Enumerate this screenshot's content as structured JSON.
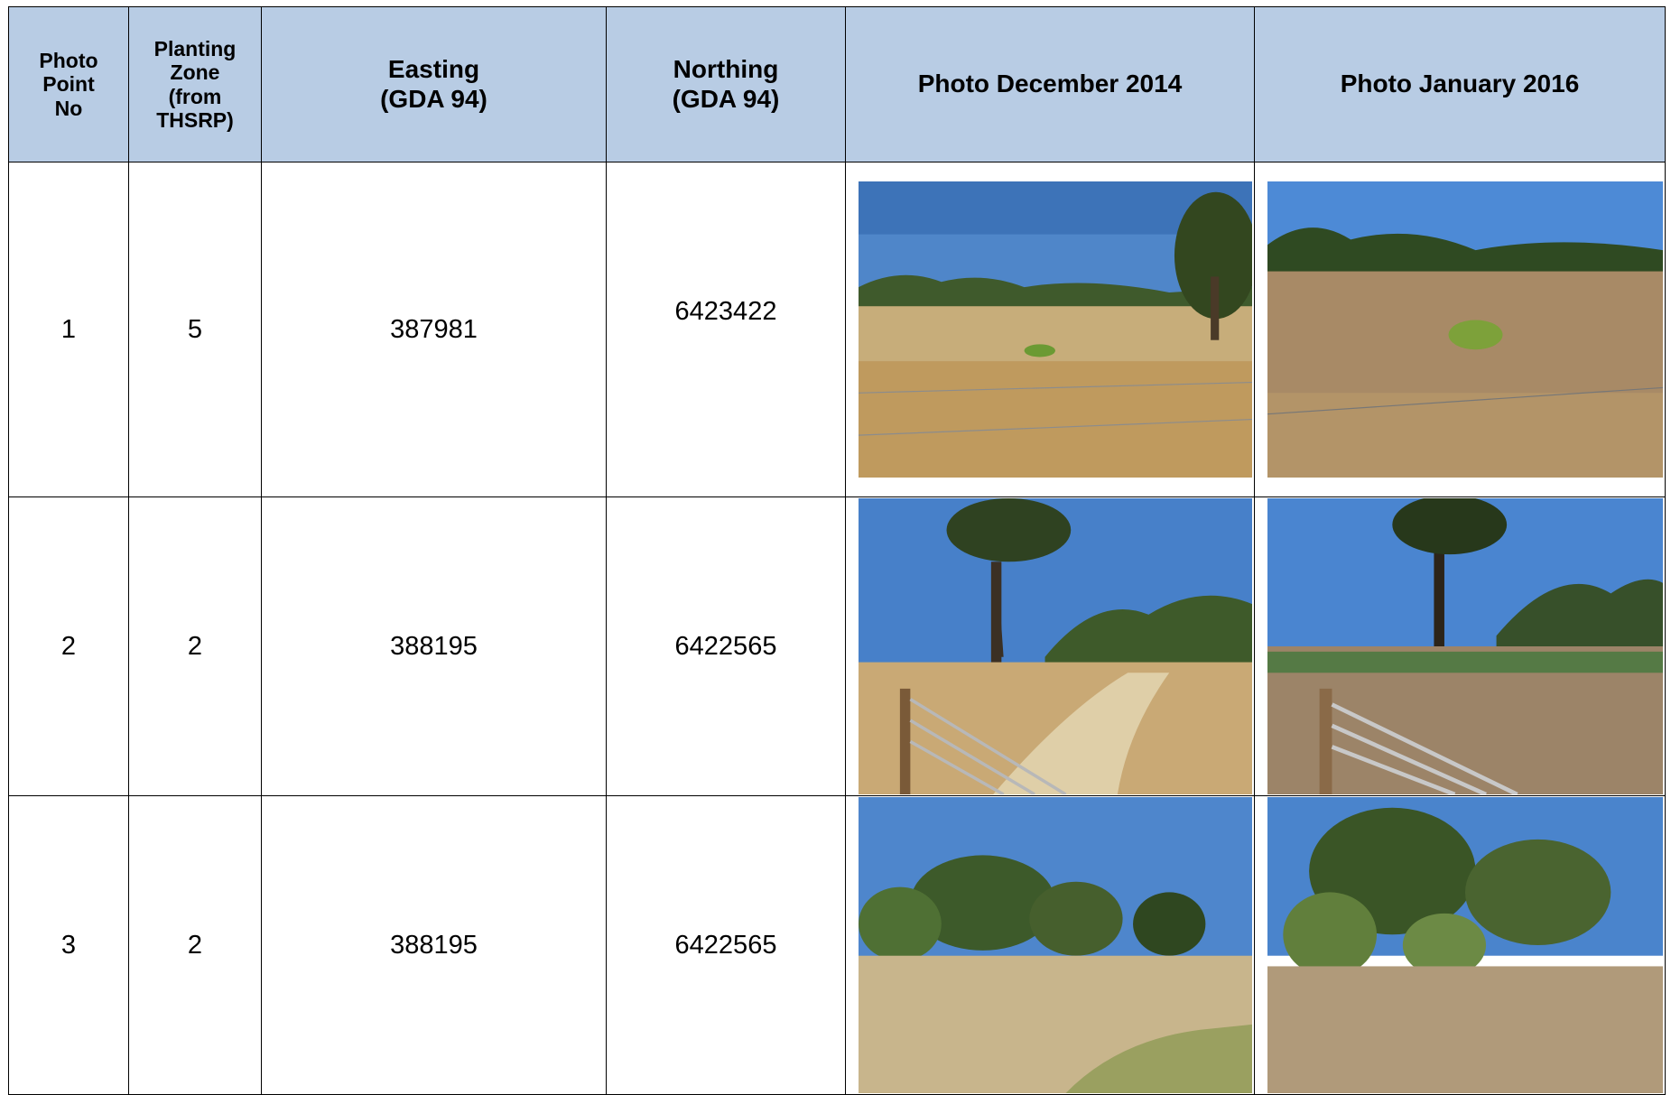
{
  "table": {
    "header": [
      "Photo\nPoint\nNo",
      "Planting\nZone\n(from\nTHSRP)",
      "Easting\n(GDA 94)",
      "Northing\n(GDA 94)",
      "Photo December 2014",
      "Photo January 2016"
    ],
    "rows": [
      [
        1,
        5,
        387981,
        6423422
      ],
      [
        2,
        2,
        388195,
        6422565
      ],
      [
        3,
        2,
        388195,
        6422565
      ]
    ]
  }
}
